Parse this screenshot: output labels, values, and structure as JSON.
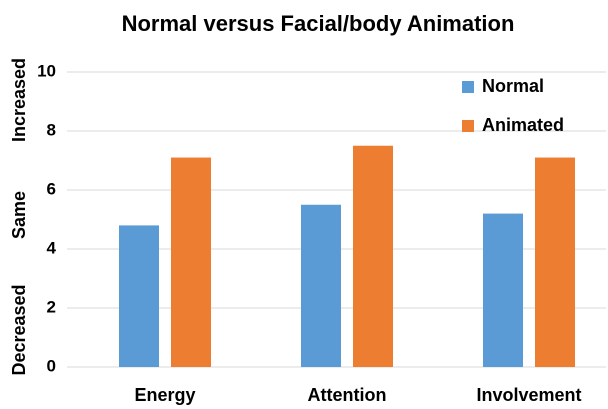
{
  "chart_data": {
    "type": "bar",
    "title": "Normal versus Facial/body Animation",
    "categories": [
      "Energy",
      "Attention",
      "Involvement"
    ],
    "series": [
      {
        "name": "Normal",
        "color": "#5b9bd5",
        "values": [
          4.8,
          5.5,
          5.2
        ]
      },
      {
        "name": "Animated",
        "color": "#ed7d31",
        "values": [
          7.1,
          7.5,
          7.1
        ]
      }
    ],
    "ylim": [
      0,
      10
    ],
    "yticks": [
      0,
      2,
      4,
      6,
      8,
      10
    ],
    "grid": true,
    "legend": "top-right",
    "y_annotations": [
      "Increased",
      "Same",
      "Decreased"
    ]
  }
}
